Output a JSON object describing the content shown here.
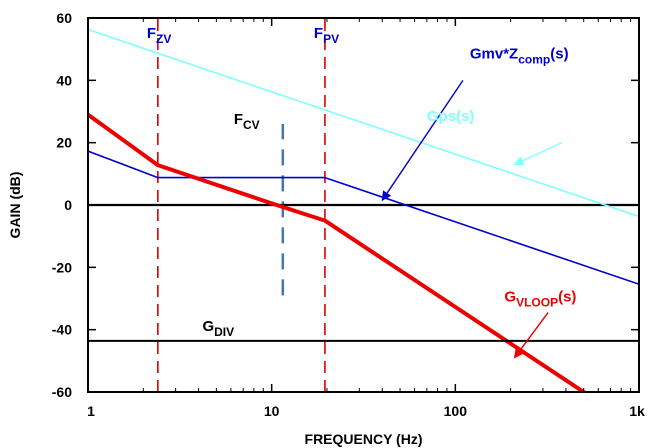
{
  "chart_data": {
    "type": "line",
    "xlabel": "FREQUENCY (Hz)",
    "ylabel": "GAIN (dB)",
    "xscale": "log",
    "xlim": [
      1,
      1000
    ],
    "ylim": [
      -60,
      60
    ],
    "xticks": [
      1,
      10,
      100,
      1000
    ],
    "xtick_labels": [
      "1",
      "10",
      "100",
      "1k"
    ],
    "yticks": [
      60,
      40,
      20,
      0,
      -20,
      -40,
      -60
    ],
    "ytick_labels": [
      "60",
      "40",
      "20",
      "0",
      "-20",
      "-40",
      "-60"
    ],
    "grid": false,
    "series": [
      {
        "name": "Gps(s)",
        "color": "#7fffff",
        "width": 1.6,
        "x": [
          1,
          1000
        ],
        "y": [
          56.3,
          -3.7
        ]
      },
      {
        "name": "Gmv*Zcomp(s)",
        "color": "#0000cc",
        "width": 1.6,
        "x": [
          1,
          2.4,
          19.5,
          1000
        ],
        "y": [
          17.3,
          8.8,
          8.8,
          -25.4
        ]
      },
      {
        "name": "GVLOOP(s)",
        "color": "#ee0000",
        "width": 4,
        "x": [
          1,
          2.4,
          10,
          19.5,
          500
        ],
        "y": [
          29,
          12.8,
          0.5,
          -5,
          -60
        ]
      },
      {
        "name": "GDIV",
        "color": "#000000",
        "width": 2,
        "x": [
          1,
          1000
        ],
        "y": [
          -43.6,
          -43.6
        ]
      }
    ],
    "zero_line": {
      "y": 0,
      "color": "#000000"
    },
    "vlines": [
      {
        "label": "F",
        "sub": "ZV",
        "x": 2.4,
        "y_from": -60,
        "y_to": 60,
        "color": "#dd0000",
        "dash": "dashed",
        "label_color": "#0000cc"
      },
      {
        "label": "F",
        "sub": "PV",
        "x": 19.5,
        "y_from": -60,
        "y_to": 60,
        "color": "#dd0000",
        "dash": "dashed",
        "label_color": "#0000cc"
      },
      {
        "label": "F",
        "sub": "CV",
        "x": 11.5,
        "y_from": -29,
        "y_to": 26,
        "color": "#4477aa",
        "dash": "dashed",
        "label_color": "#000000"
      }
    ],
    "annotations": [
      {
        "label": "Gmv*Z",
        "sub": "comp",
        "suffix": "(s)",
        "color": "#0000cc",
        "text_at": [
          120,
          47
        ],
        "arrow_from": [
          110,
          40
        ],
        "arrow_to": [
          40,
          1.5
        ]
      },
      {
        "label": "Gps(s)",
        "sub": "",
        "suffix": "",
        "color": "#7fffff",
        "text_at": [
          70,
          27
        ],
        "arrow_from": [
          380,
          20
        ],
        "arrow_to": [
          210,
          13
        ]
      },
      {
        "label": "G",
        "sub": "VLOOP",
        "suffix": "(s)",
        "color": "#ee0000",
        "text_at": [
          185,
          -31
        ],
        "arrow_from": [
          320,
          -34.5
        ],
        "arrow_to": [
          210,
          -49
        ]
      },
      {
        "label": "G",
        "sub": "DIV",
        "suffix": "",
        "color": "#000000",
        "text_at": [
          4.2,
          -40.5
        ]
      }
    ]
  }
}
